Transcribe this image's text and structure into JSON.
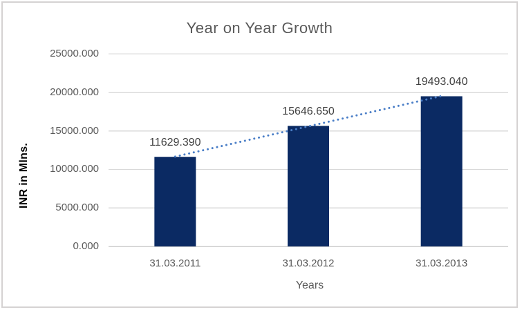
{
  "chart_data": {
    "type": "bar",
    "title": "Year on Year Growth",
    "xlabel": "Years",
    "ylabel": "INR in Mlns.",
    "categories": [
      "31.03.2011",
      "31.03.2012",
      "31.03.2013"
    ],
    "values": [
      11629.39,
      15646.65,
      19493.04
    ],
    "data_labels": [
      "11629.390",
      "15646.650",
      "19493.040"
    ],
    "y_ticks": [
      0,
      5000,
      10000,
      15000,
      20000,
      25000
    ],
    "y_tick_labels": [
      "0.000",
      "5000.000",
      "10000.000",
      "15000.000",
      "20000.000",
      "25000.000"
    ],
    "ylim": [
      0,
      25000
    ],
    "grid": true,
    "legend": false,
    "trendline": {
      "type": "linear",
      "style": "dotted",
      "color": "#4A7EC7"
    },
    "colors": {
      "bar": "#0B2A63",
      "gridline": "#D9D9D9",
      "axis_line": "#CFCFCF",
      "axis_text": "#595959",
      "data_label_text": "#404040",
      "title_text": "#595959",
      "background": "#FFFFFF",
      "border": "#D5D2D2"
    }
  }
}
